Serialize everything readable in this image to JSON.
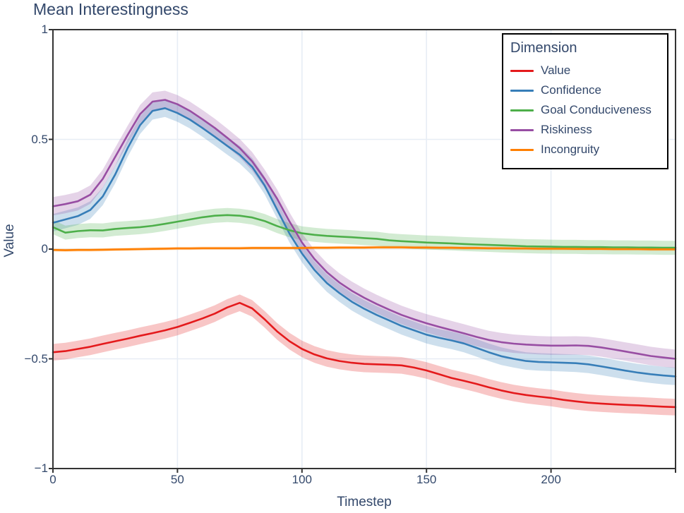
{
  "title": "Mean Interestingness",
  "axes": {
    "x": {
      "label": "Timestep",
      "range": [
        0,
        250
      ],
      "ticks": [
        0,
        50,
        100,
        150,
        200
      ],
      "tick_labels": [
        "0",
        "50",
        "100",
        "150",
        "200"
      ],
      "edge_tick_at_max": true
    },
    "y": {
      "label": "Value",
      "range": [
        -1,
        1
      ],
      "ticks": [
        1,
        0.5,
        0,
        -0.5,
        -1
      ],
      "tick_labels": [
        "1",
        "0.5",
        "0",
        "−0.5",
        "−1"
      ]
    }
  },
  "legend": {
    "title": "Dimension",
    "position": "upper right",
    "items": [
      {
        "label": "Value",
        "color": "#e41a1c"
      },
      {
        "label": "Confidence",
        "color": "#377eb8"
      },
      {
        "label": "Goal Conduciveness",
        "color": "#4daf4a"
      },
      {
        "label": "Riskiness",
        "color": "#984ea3"
      },
      {
        "label": "Incongruity",
        "color": "#ff7f00"
      }
    ]
  },
  "style": {
    "text_color": "#33486b",
    "grid_color": "#e7edf5",
    "axis_color": "#333333",
    "band_opacity": 0.25,
    "line_width": 2.6
  },
  "chart_data": {
    "type": "line",
    "title": "Mean Interestingness",
    "xlabel": "Timestep",
    "ylabel": "Value",
    "xlim": [
      0,
      250
    ],
    "ylim": [
      -1,
      1
    ],
    "grid": true,
    "legend_title": "Dimension",
    "legend_position": "upper right",
    "x": [
      0,
      5,
      10,
      15,
      20,
      25,
      30,
      35,
      40,
      45,
      50,
      55,
      60,
      65,
      70,
      75,
      80,
      85,
      90,
      95,
      100,
      105,
      110,
      115,
      120,
      125,
      130,
      135,
      140,
      145,
      150,
      155,
      160,
      165,
      170,
      175,
      180,
      185,
      190,
      195,
      200,
      205,
      210,
      215,
      220,
      225,
      230,
      235,
      240,
      245,
      250
    ],
    "series": [
      {
        "name": "Value",
        "color": "#e41a1c",
        "band": 0.038,
        "values": [
          -0.47,
          -0.465,
          -0.455,
          -0.445,
          -0.432,
          -0.42,
          -0.408,
          -0.395,
          -0.383,
          -0.37,
          -0.355,
          -0.336,
          -0.316,
          -0.294,
          -0.266,
          -0.245,
          -0.27,
          -0.32,
          -0.375,
          -0.42,
          -0.455,
          -0.48,
          -0.498,
          -0.51,
          -0.518,
          -0.523,
          -0.525,
          -0.527,
          -0.53,
          -0.54,
          -0.553,
          -0.57,
          -0.587,
          -0.6,
          -0.614,
          -0.63,
          -0.644,
          -0.656,
          -0.665,
          -0.672,
          -0.678,
          -0.687,
          -0.694,
          -0.7,
          -0.704,
          -0.707,
          -0.71,
          -0.712,
          -0.715,
          -0.718,
          -0.72
        ]
      },
      {
        "name": "Confidence",
        "color": "#377eb8",
        "band": 0.04,
        "values": [
          0.12,
          0.135,
          0.15,
          0.178,
          0.24,
          0.34,
          0.46,
          0.565,
          0.63,
          0.642,
          0.62,
          0.59,
          0.552,
          0.512,
          0.47,
          0.43,
          0.375,
          0.29,
          0.18,
          0.07,
          -0.02,
          -0.095,
          -0.155,
          -0.2,
          -0.24,
          -0.272,
          -0.3,
          -0.325,
          -0.35,
          -0.37,
          -0.39,
          -0.404,
          -0.416,
          -0.43,
          -0.45,
          -0.47,
          -0.488,
          -0.5,
          -0.51,
          -0.514,
          -0.516,
          -0.518,
          -0.52,
          -0.525,
          -0.534,
          -0.544,
          -0.554,
          -0.563,
          -0.57,
          -0.576,
          -0.58
        ]
      },
      {
        "name": "Goal Conduciveness",
        "color": "#4daf4a",
        "band": 0.032,
        "values": [
          0.1,
          0.075,
          0.082,
          0.086,
          0.085,
          0.092,
          0.096,
          0.1,
          0.106,
          0.115,
          0.125,
          0.135,
          0.145,
          0.152,
          0.155,
          0.152,
          0.144,
          0.128,
          0.105,
          0.086,
          0.072,
          0.065,
          0.06,
          0.057,
          0.054,
          0.05,
          0.047,
          0.04,
          0.036,
          0.033,
          0.03,
          0.028,
          0.026,
          0.023,
          0.021,
          0.019,
          0.017,
          0.015,
          0.013,
          0.012,
          0.011,
          0.01,
          0.01,
          0.009,
          0.009,
          0.008,
          0.008,
          0.007,
          0.007,
          0.006,
          0.006
        ]
      },
      {
        "name": "Riskiness",
        "color": "#984ea3",
        "band": 0.042,
        "values": [
          0.195,
          0.205,
          0.218,
          0.248,
          0.32,
          0.42,
          0.52,
          0.615,
          0.672,
          0.68,
          0.66,
          0.63,
          0.592,
          0.552,
          0.507,
          0.46,
          0.4,
          0.32,
          0.23,
          0.125,
          0.03,
          -0.045,
          -0.105,
          -0.152,
          -0.19,
          -0.222,
          -0.25,
          -0.276,
          -0.3,
          -0.32,
          -0.338,
          -0.354,
          -0.369,
          -0.384,
          -0.4,
          -0.414,
          -0.424,
          -0.431,
          -0.435,
          -0.438,
          -0.44,
          -0.44,
          -0.439,
          -0.441,
          -0.448,
          -0.457,
          -0.467,
          -0.477,
          -0.487,
          -0.494,
          -0.5
        ]
      },
      {
        "name": "Incongruity",
        "color": "#ff7f00",
        "band": 0.007,
        "values": [
          -0.004,
          -0.005,
          -0.004,
          -0.004,
          -0.003,
          -0.002,
          -0.001,
          0,
          0.001,
          0.002,
          0.003,
          0.003,
          0.004,
          0.004,
          0.004,
          0.004,
          0.005,
          0.005,
          0.005,
          0.005,
          0.005,
          0.006,
          0.006,
          0.007,
          0.007,
          0.007,
          0.008,
          0.008,
          0.008,
          0.007,
          0.007,
          0.006,
          0.006,
          0.005,
          0.005,
          0.004,
          0.004,
          0.003,
          0.003,
          0.002,
          0.002,
          0.002,
          0.001,
          0.001,
          0.001,
          0,
          0,
          0,
          -0.001,
          -0.001,
          -0.001
        ]
      }
    ]
  }
}
